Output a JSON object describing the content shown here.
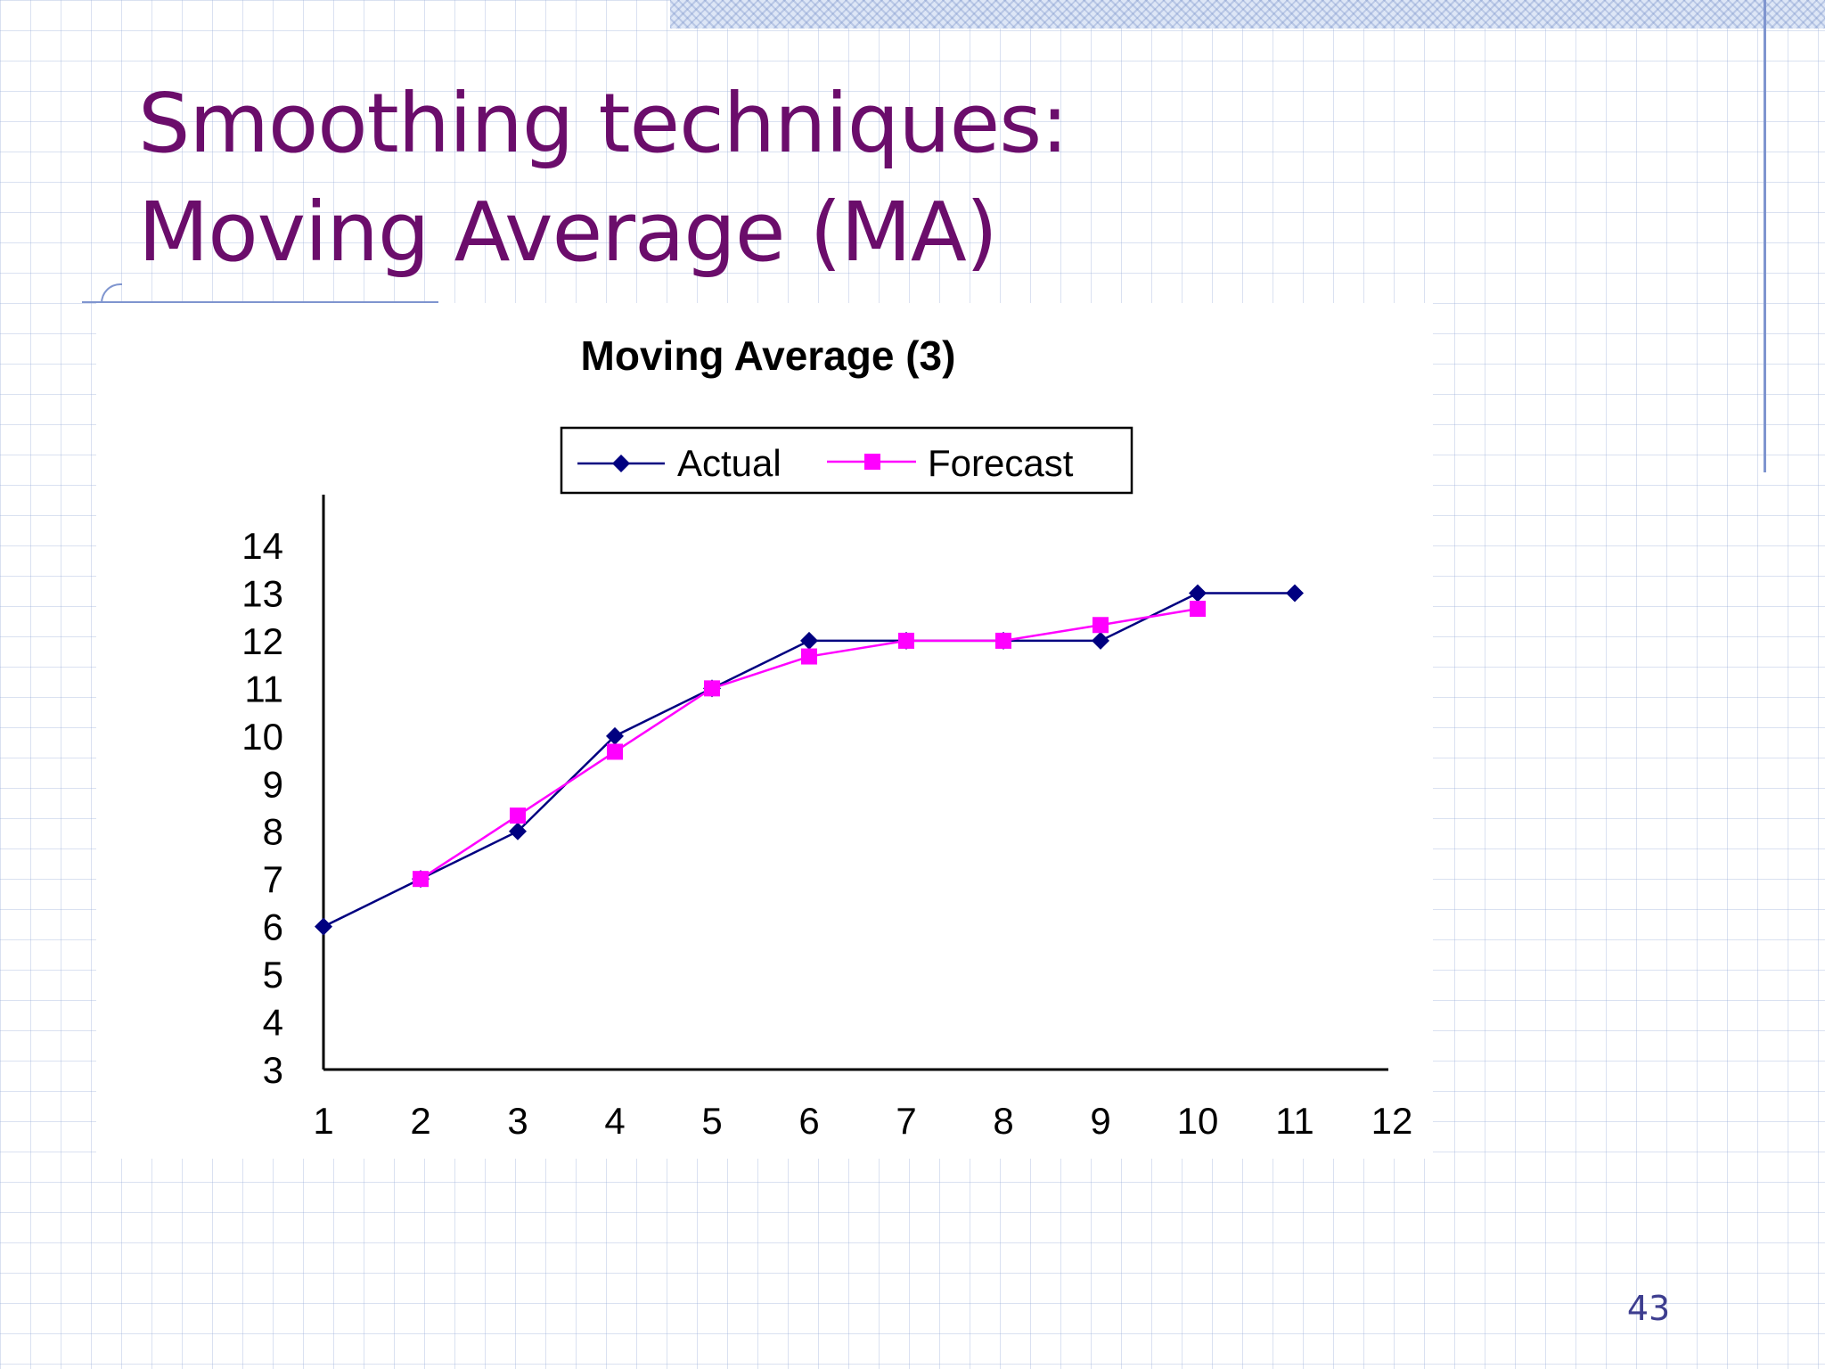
{
  "slide": {
    "title_line1": "Smoothing techniques:",
    "title_line2": "Moving Average (MA)",
    "page_number": "43",
    "colors": {
      "title": "#6b0d6b",
      "actual": "#000080",
      "forecast": "#ff00ff",
      "page_number": "#3d3d8f"
    }
  },
  "chart_data": {
    "type": "line",
    "title": "Moving Average (3)",
    "x": [
      1,
      2,
      3,
      4,
      5,
      6,
      7,
      8,
      9,
      10,
      11,
      12
    ],
    "x_tick_labels": [
      "1",
      "2",
      "3",
      "4",
      "5",
      "6",
      "7",
      "8",
      "9",
      "10",
      "11",
      "12"
    ],
    "y_tick_labels": [
      "3",
      "4",
      "5",
      "6",
      "7",
      "8",
      "9",
      "10",
      "11",
      "12",
      "13",
      "14"
    ],
    "ylim": [
      3,
      14
    ],
    "grid": false,
    "legend_position": "top",
    "series": [
      {
        "name": "Actual",
        "marker": "diamond",
        "color": "#000080",
        "x": [
          1,
          2,
          3,
          4,
          5,
          6,
          7,
          8,
          9,
          10,
          11
        ],
        "values": [
          6,
          7,
          8,
          10,
          11,
          12,
          12,
          12,
          12,
          13,
          13
        ]
      },
      {
        "name": "Forecast",
        "marker": "square",
        "color": "#ff00ff",
        "x": [
          2,
          3,
          4,
          5,
          6,
          7,
          8,
          9,
          10
        ],
        "values": [
          7,
          8.33,
          9.67,
          11,
          11.67,
          12,
          12,
          12.33,
          12.67
        ]
      }
    ]
  }
}
